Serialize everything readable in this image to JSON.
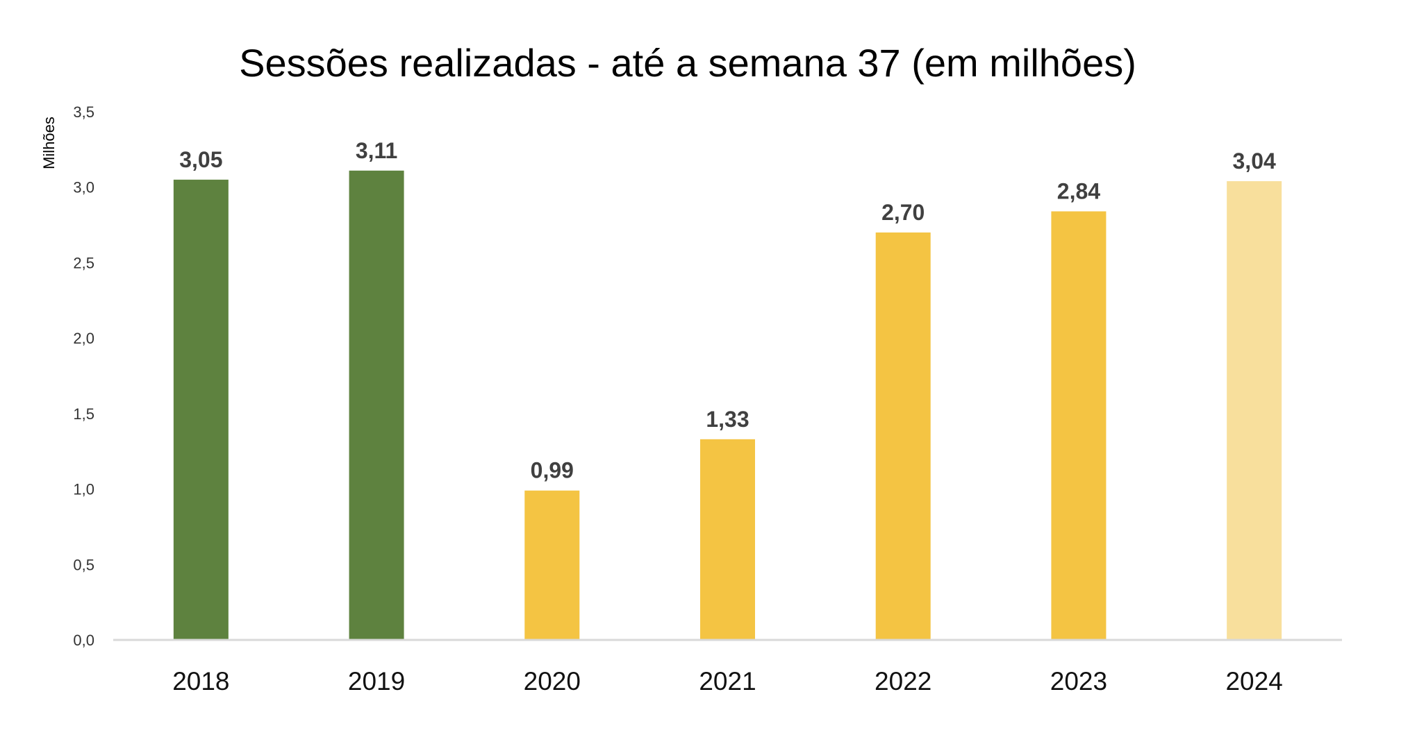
{
  "chart_data": {
    "type": "bar",
    "title": "Sessões realizadas - até a semana 37 (em milhões)",
    "xlabel": "",
    "ylabel": "Milhões",
    "categories": [
      "2018",
      "2019",
      "2020",
      "2021",
      "2022",
      "2023",
      "2024"
    ],
    "values": [
      3.05,
      3.11,
      0.99,
      1.33,
      2.7,
      2.84,
      3.04
    ],
    "data_labels": [
      "3,05",
      "3,11",
      "0,99",
      "1,33",
      "2,70",
      "2,84",
      "3,04"
    ],
    "ylim": [
      0,
      3.5
    ],
    "yticks": [
      0,
      0.5,
      1.0,
      1.5,
      2.0,
      2.5,
      3.0,
      3.5
    ],
    "ytick_labels": [
      "0,0",
      "0,5",
      "1,0",
      "1,5",
      "2,0",
      "2,5",
      "3,0",
      "3,5"
    ],
    "bar_colors": [
      "#5E823F",
      "#5E823F",
      "#F4C443",
      "#F4C443",
      "#F4C443",
      "#F4C443",
      "#F8DF9C"
    ],
    "grid": false,
    "legend": "none"
  }
}
